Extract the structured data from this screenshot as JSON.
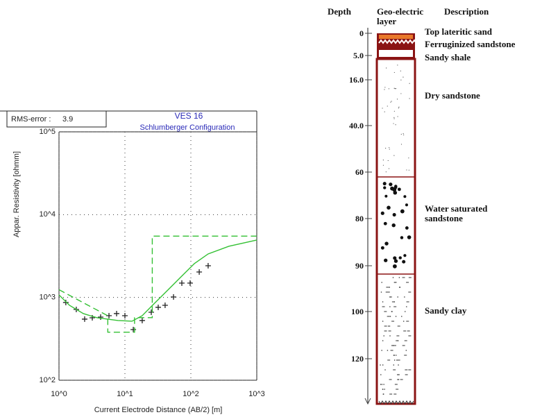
{
  "chart_data": {
    "type": "line",
    "title": "VES 16",
    "subtitle": "Schlumberger Configuration",
    "rms_label": "RMS-error :",
    "rms_value": 3.9,
    "xlabel": "Current Electrode Distance (AB/2) [m]",
    "ylabel": "Appar. Resistivity [ohmm]",
    "xscale": "log",
    "yscale": "log",
    "grid": true,
    "xlim": [
      1,
      1000
    ],
    "ylim": [
      100,
      100000
    ],
    "xticks": [
      {
        "value": 1,
        "label": "10^0"
      },
      {
        "value": 10,
        "label": "10^1"
      },
      {
        "value": 100,
        "label": "10^2"
      },
      {
        "value": 1000,
        "label": "10^3"
      }
    ],
    "yticks": [
      {
        "value": 100,
        "label": "10^2"
      },
      {
        "value": 1000,
        "label": "10^3"
      },
      {
        "value": 10000,
        "label": "10^4"
      },
      {
        "value": 100000,
        "label": "10^5"
      }
    ],
    "series": [
      {
        "color": "#222222",
        "marker": "+",
        "x": [
          1.27,
          1.83,
          2.45,
          3.2,
          4.28,
          5.73,
          7.48,
          10,
          13.4,
          18.3,
          25.1,
          32,
          40.7,
          54.6,
          73,
          97.5,
          134,
          183
        ],
        "values": [
          869,
          716,
          547,
          568,
          579,
          602,
          638,
          602,
          409,
          526,
          663,
          759,
          804,
          1013,
          1490,
          1490,
          2030,
          2415
        ]
      },
      {
        "color": "#33c033",
        "dash": false,
        "x": [
          1,
          1.44,
          2.34,
          3.79,
          7.85,
          12.8,
          18.3,
          26.2,
          42.7,
          69.5,
          113,
          183,
          377,
          1000
        ],
        "values": [
          1074,
          804,
          638,
          568,
          526,
          516,
          602,
          804,
          1183,
          1741,
          2560,
          3354,
          4150,
          4935
        ]
      },
      {
        "color": "#33c033",
        "dash": true,
        "x": [
          1,
          5.5,
          5.5,
          14,
          14,
          26,
          26,
          1000
        ],
        "values": [
          1240,
          600,
          380,
          380,
          570,
          570,
          5500,
          5500
        ]
      }
    ]
  },
  "lithology": {
    "headers": [
      "Depth",
      "Geo-electric layer",
      "Description"
    ],
    "depth_labels": [
      "0",
      "5.0",
      "16.0",
      "40.0",
      "60",
      "80",
      "90",
      "100",
      "120"
    ],
    "descriptions": [
      "Top lateritic sand",
      "Ferruginized sandstone",
      "Sandy shale",
      "Dry sandstone",
      "Water saturated sandstone",
      "Sandy clay"
    ]
  }
}
